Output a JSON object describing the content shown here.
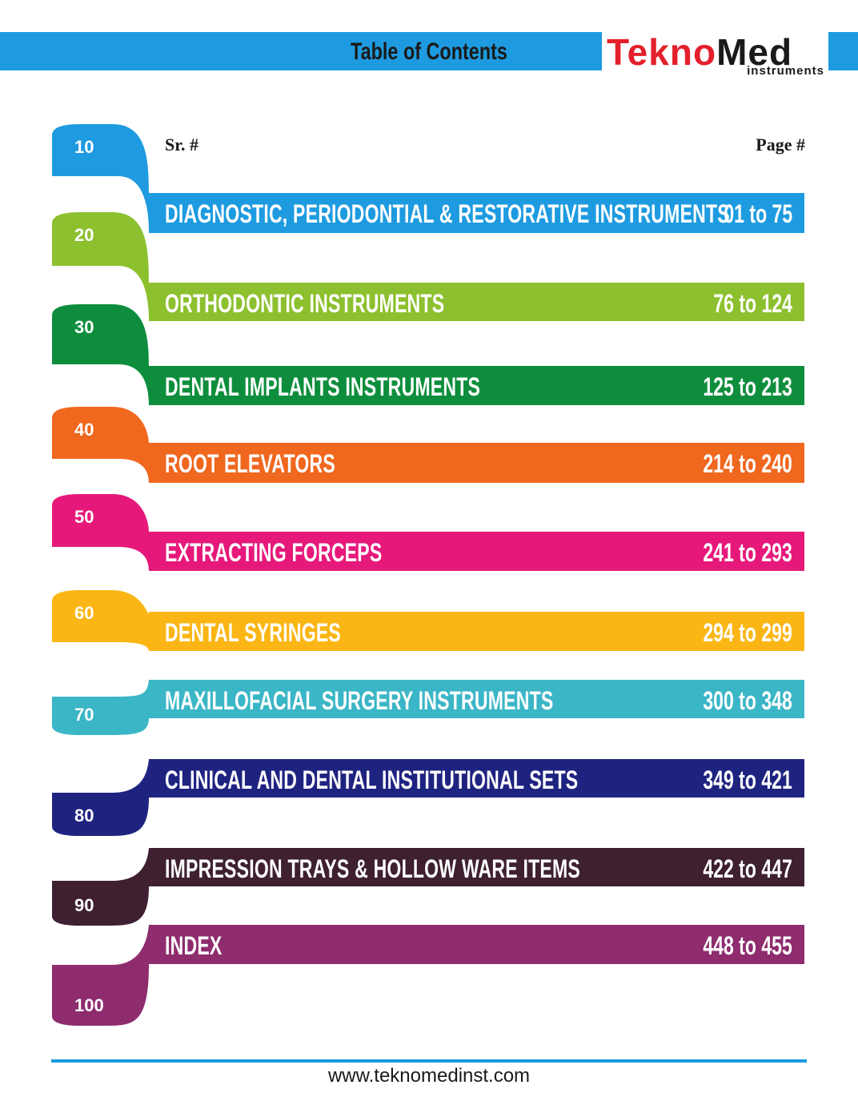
{
  "header": {
    "title": "Table of Contents",
    "logo_brand_part1": "Tekno",
    "logo_brand_part2": "Med",
    "logo_sub": "instruments"
  },
  "columns": {
    "serial": "Sr. #",
    "page": "Page #"
  },
  "rows": [
    {
      "sr": "10",
      "title": "DIAGNOSTIC, PERIODONTIAL & RESTORATIVE INSTRUMENTS",
      "pages": "01 to 75",
      "color": "#1E9BE0"
    },
    {
      "sr": "20",
      "title": "ORTHODONTIC INSTRUMENTS",
      "pages": "76 to 124",
      "color": "#8DC02F"
    },
    {
      "sr": "30",
      "title": "DENTAL IMPLANTS INSTRUMENTS",
      "pages": "125 to 213",
      "color": "#0E8E3D"
    },
    {
      "sr": "40",
      "title": "ROOT ELEVATORS",
      "pages": "214 to 240",
      "color": "#F0671E"
    },
    {
      "sr": "50",
      "title": "EXTRACTING FORCEPS",
      "pages": "241 to 293",
      "color": "#E6197A"
    },
    {
      "sr": "60",
      "title": "DENTAL SYRINGES",
      "pages": "294 to 299",
      "color": "#FBB615"
    },
    {
      "sr": "70",
      "title": "MAXILLOFACIAL SURGERY INSTRUMENTS",
      "pages": "300 to 348",
      "color": "#3BB6C7"
    },
    {
      "sr": "80",
      "title": "CLINICAL AND DENTAL INSTITUTIONAL SETS",
      "pages": "349 to 421",
      "color": "#1F2380"
    },
    {
      "sr": "90",
      "title": "IMPRESSION TRAYS & HOLLOW WARE ITEMS",
      "pages": "422 to 447",
      "color": "#3E2030"
    },
    {
      "sr": "100",
      "title": "INDEX",
      "pages": "448 to 455",
      "color": "#8E2C6E"
    }
  ],
  "footer": {
    "url": "www.teknomedinst.com"
  }
}
